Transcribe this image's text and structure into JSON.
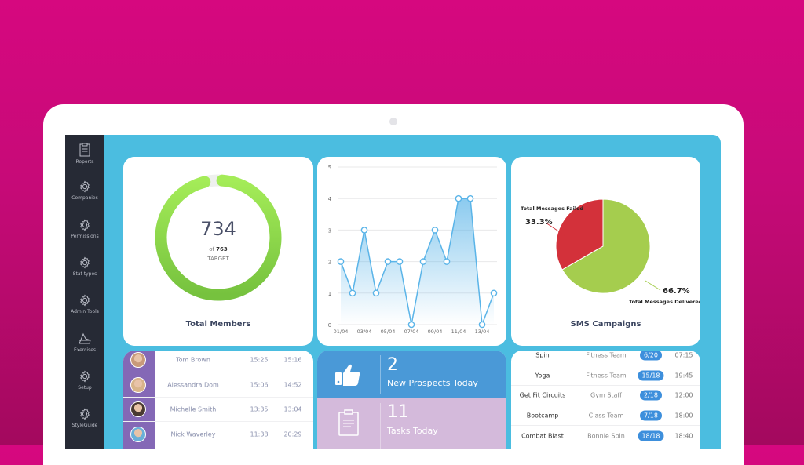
{
  "sidebar": {
    "items": [
      {
        "label": "Reports",
        "icon": "clipboard-icon"
      },
      {
        "label": "Companies",
        "icon": "gear-icon"
      },
      {
        "label": "Permissions",
        "icon": "gear-icon"
      },
      {
        "label": "Stat types",
        "icon": "gear-icon"
      },
      {
        "label": "Admin Tools",
        "icon": "gear-icon"
      },
      {
        "label": "Exercises",
        "icon": "weight-icon"
      },
      {
        "label": "Setup",
        "icon": "gear-icon"
      },
      {
        "label": "StyleGuide",
        "icon": "gear-icon"
      }
    ]
  },
  "members": {
    "value": "734",
    "of_label": "of",
    "target": "763",
    "target_label": "TARGET",
    "title": "Total Members",
    "fraction": 0.962,
    "color": "#8fdd4a"
  },
  "chart_data": [
    {
      "type": "area",
      "x": [
        "01/04",
        "02/04",
        "03/04",
        "04/04",
        "05/04",
        "06/04",
        "07/04",
        "08/04",
        "09/04",
        "10/04",
        "11/04",
        "12/04",
        "13/04",
        "14/04"
      ],
      "tick_labels": [
        "01/04",
        "03/04",
        "05/04",
        "07/04",
        "09/04",
        "11/04",
        "13/04"
      ],
      "values": [
        2,
        1,
        3,
        1,
        2,
        2,
        0,
        2,
        3,
        2,
        4,
        4,
        0,
        1
      ],
      "ylim": [
        0,
        5
      ],
      "yticks": [
        0,
        1,
        2,
        3,
        4,
        5
      ],
      "grid": true,
      "color": "#5ab4e8"
    },
    {
      "type": "pie",
      "title": "SMS Campaigns",
      "slices": [
        {
          "name": "Total Messages Failed",
          "value": 33.3,
          "label": "33.3%",
          "color": "#d3313a"
        },
        {
          "name": "Total Messages Delivered",
          "value": 66.7,
          "label": "66.7%",
          "color": "#a5cd4e"
        }
      ]
    }
  ],
  "people": [
    {
      "name": "Tom Brown",
      "t1": "15:25",
      "t2": "15:16"
    },
    {
      "name": "Alessandra Dom",
      "t1": "15:06",
      "t2": "14:52"
    },
    {
      "name": "Michelle Smith",
      "t1": "13:35",
      "t2": "13:04"
    },
    {
      "name": "Nick Waverley",
      "t1": "11:38",
      "t2": "20:29"
    }
  ],
  "stats": {
    "prospects": {
      "value": "2",
      "label": "New Prospects Today"
    },
    "tasks": {
      "value": "11",
      "label": "Tasks Today"
    }
  },
  "classes": [
    {
      "name": "Spin",
      "team": "Fitness Team",
      "booked": "6/20",
      "time": "07:15"
    },
    {
      "name": "Yoga",
      "team": "Fitness Team",
      "booked": "15/18",
      "time": "19:45"
    },
    {
      "name": "Get Fit Circuits",
      "team": "Gym Staff",
      "booked": "2/18",
      "time": "12:00"
    },
    {
      "name": "Bootcamp",
      "team": "Class Team",
      "booked": "7/18",
      "time": "18:00"
    },
    {
      "name": "Combat Blast",
      "team": "Bonnie Spin",
      "booked": "18/18",
      "time": "18:40"
    }
  ]
}
